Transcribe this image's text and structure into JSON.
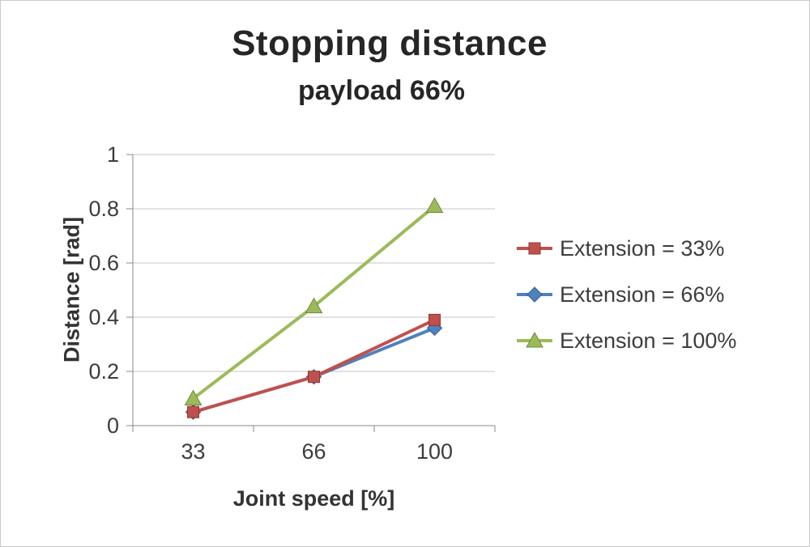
{
  "chart_data": {
    "type": "line",
    "title": "Stopping distance",
    "subtitle": "payload 66%",
    "xlabel": "Joint speed [%]",
    "ylabel": "Distance [rad]",
    "x": [
      33,
      66,
      100
    ],
    "x_tick_labels": [
      "33",
      "66",
      "100"
    ],
    "ylim": [
      0,
      1
    ],
    "y_ticks": [
      0,
      0.2,
      0.4,
      0.6,
      0.8,
      1
    ],
    "y_tick_labels": [
      "0",
      "0.2",
      "0.4",
      "0.6",
      "0.8",
      "1"
    ],
    "grid": true,
    "legend_position": "right",
    "draw_order": [
      1,
      0,
      2
    ],
    "series": [
      {
        "name": "Extension = 33%",
        "marker": "square",
        "color": "#C0504D",
        "values": [
          0.05,
          0.18,
          0.39
        ]
      },
      {
        "name": "Extension = 66%",
        "marker": "diamond",
        "color": "#4F81BD",
        "values": [
          0.05,
          0.18,
          0.36
        ]
      },
      {
        "name": "Extension = 100%",
        "marker": "triangle",
        "color": "#9BBB59",
        "values": [
          0.1,
          0.44,
          0.81
        ]
      }
    ]
  }
}
